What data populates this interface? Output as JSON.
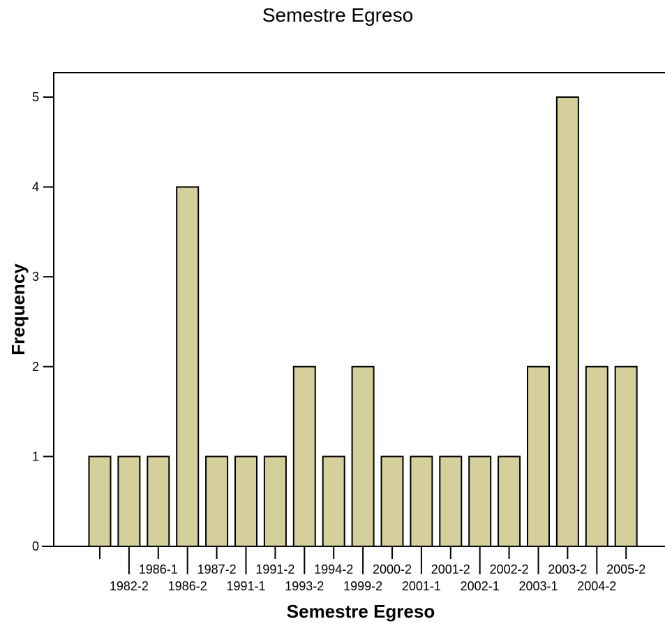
{
  "chart_data": {
    "type": "bar",
    "title": "Semestre Egreso",
    "xlabel": "Semestre Egreso",
    "ylabel": "Frequency",
    "ylim": [
      0,
      5.28
    ],
    "yticks": [
      0,
      1,
      2,
      3,
      4,
      5
    ],
    "grid": false,
    "categories": [
      "",
      "1982-2",
      "1986-1",
      "1986-2",
      "1987-2",
      "1991-1",
      "1991-2",
      "1993-2",
      "1994-2",
      "1999-2",
      "2000-2",
      "2001-1",
      "2001-2",
      "2002-1",
      "2002-2",
      "2003-1",
      "2003-2",
      "2004-2",
      "2005-2"
    ],
    "values": [
      1,
      1,
      1,
      4,
      1,
      1,
      1,
      2,
      1,
      2,
      1,
      1,
      1,
      1,
      1,
      2,
      5,
      2,
      2
    ],
    "colors": {
      "bar_fill": "#d5cf9b",
      "bar_stroke": "#000000",
      "axis": "#000000"
    }
  }
}
